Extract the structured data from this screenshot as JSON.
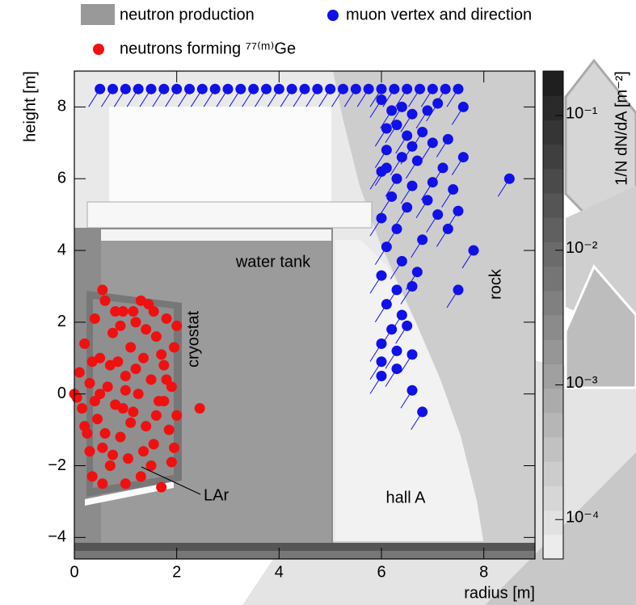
{
  "chart_data": {
    "type": "scatter",
    "xlabel": "radius [m]",
    "ylabel": "height [m]",
    "xlim": [
      0,
      9
    ],
    "ylim": [
      -4.6,
      9
    ],
    "xticks": [
      0,
      2,
      4,
      6,
      8
    ],
    "yticks": [
      -4,
      -2,
      0,
      2,
      4,
      6,
      8
    ],
    "grid": false,
    "background": {
      "name": "neutron production",
      "color": "#999999"
    },
    "colorbar": {
      "label": "1/N dN/dA [m⁻²]",
      "scale": "log",
      "zlim": [
        5.1e-05,
        0.214
      ],
      "zticks": [
        {
          "value": 0.1,
          "label": "10⁻¹"
        },
        {
          "value": 0.01,
          "label": "10⁻²"
        },
        {
          "value": 0.001,
          "label": "10⁻³"
        },
        {
          "value": 0.0001,
          "label": "10⁻⁴"
        }
      ]
    },
    "annotations": [
      {
        "text": "water tank"
      },
      {
        "text": "cryostat"
      },
      {
        "text": "LAr"
      },
      {
        "text": "hall A"
      },
      {
        "text": "rock"
      }
    ],
    "series": [
      {
        "name": "muon vertex and direction",
        "color": "#1010e8",
        "x": [
          0.5,
          0.75,
          1.0,
          1.25,
          1.5,
          1.75,
          2.0,
          2.25,
          2.5,
          2.75,
          3.0,
          3.25,
          3.5,
          3.75,
          4.0,
          4.25,
          4.5,
          4.75,
          5.0,
          5.25,
          5.5,
          5.75,
          6.0,
          6.25,
          6.5,
          6.75,
          7.0,
          7.25,
          7.5,
          6.0,
          6.2,
          6.4,
          6.6,
          6.9,
          7.1,
          7.6,
          6.1,
          6.3,
          6.5,
          6.8,
          7.0,
          7.3,
          6.1,
          6.4,
          6.7,
          7.2,
          7.6,
          6.0,
          6.3,
          6.6,
          7.0,
          7.4,
          8.5,
          6.2,
          6.5,
          7.1,
          7.5,
          6.0,
          6.3,
          6.8,
          7.3,
          7.8,
          6.1,
          6.4,
          6.7,
          6.0,
          6.3,
          6.6,
          7.5,
          6.1,
          6.4,
          6.2,
          6.5,
          6.0,
          6.3,
          6.6,
          6.0,
          6.3,
          6.0,
          6.6,
          6.8,
          6.1,
          6.6,
          6.9
        ],
        "values": [
          8.5,
          8.5,
          8.5,
          8.5,
          8.5,
          8.5,
          8.5,
          8.5,
          8.5,
          8.5,
          8.5,
          8.5,
          8.5,
          8.5,
          8.5,
          8.5,
          8.5,
          8.5,
          8.5,
          8.5,
          8.5,
          8.5,
          8.5,
          8.5,
          8.5,
          8.5,
          8.5,
          8.5,
          8.5,
          8.2,
          7.9,
          8.0,
          7.8,
          7.9,
          8.1,
          8.0,
          7.4,
          7.5,
          7.2,
          7.3,
          7.0,
          7.1,
          6.8,
          6.6,
          6.5,
          6.3,
          6.6,
          6.2,
          6.0,
          5.8,
          5.9,
          5.7,
          6.0,
          5.5,
          5.2,
          5.0,
          5.1,
          4.9,
          4.6,
          4.3,
          4.6,
          4.0,
          4.1,
          3.7,
          3.4,
          3.3,
          2.9,
          3.0,
          2.9,
          2.5,
          2.2,
          1.8,
          1.9,
          1.4,
          1.2,
          1.1,
          0.9,
          0.7,
          0.5,
          0.1,
          -0.5,
          6.3,
          6.9,
          5.4
        ]
      },
      {
        "name": "neutrons forming ⁷⁷⁽ᵐ⁾Ge",
        "color": "#f01010",
        "x": [
          0.0,
          0.05,
          0.1,
          0.15,
          0.2,
          0.25,
          0.3,
          0.35,
          0.4,
          0.45,
          0.5,
          0.55,
          0.6,
          0.65,
          0.7,
          0.75,
          0.8,
          0.85,
          0.9,
          0.95,
          1.0,
          1.05,
          1.1,
          1.15,
          1.2,
          1.25,
          1.3,
          1.35,
          1.4,
          1.45,
          1.5,
          1.55,
          1.6,
          1.65,
          1.7,
          1.75,
          1.8,
          1.85,
          1.9,
          1.95,
          2.0,
          0.3,
          0.5,
          0.7,
          0.9,
          1.1,
          1.3,
          1.5,
          1.7,
          1.9,
          0.2,
          0.4,
          0.6,
          0.8,
          1.0,
          1.2,
          1.4,
          1.6,
          1.8,
          2.0,
          0.35,
          0.75,
          1.15,
          1.55,
          1.95,
          0.55,
          0.95,
          1.35,
          1.75,
          2.45,
          0.55,
          1.0
        ],
        "values": [
          0.0,
          -0.1,
          0.6,
          -0.4,
          1.4,
          -1.1,
          0.3,
          -2.3,
          2.1,
          -0.7,
          1.0,
          -1.5,
          2.6,
          0.2,
          -2.0,
          1.7,
          -0.3,
          0.9,
          -1.2,
          2.3,
          0.5,
          -1.8,
          1.3,
          -0.5,
          2.0,
          0.0,
          -2.3,
          1.0,
          -0.9,
          2.5,
          0.4,
          -1.4,
          1.6,
          -0.2,
          -2.6,
          0.8,
          2.1,
          -1.0,
          0.2,
          1.3,
          -0.6,
          -1.6,
          0.0,
          0.8,
          1.9,
          -0.8,
          2.6,
          -2.0,
          1.1,
          -1.9,
          -0.9,
          -0.2,
          -1.1,
          2.3,
          -2.5,
          0.7,
          1.8,
          -0.6,
          0.4,
          1.9,
          0.9,
          -1.7,
          2.3,
          2.3,
          -1.5,
          2.9,
          -0.4,
          -1.6,
          -0.2,
          -0.4,
          -2.5,
          0.1
        ]
      }
    ]
  }
}
